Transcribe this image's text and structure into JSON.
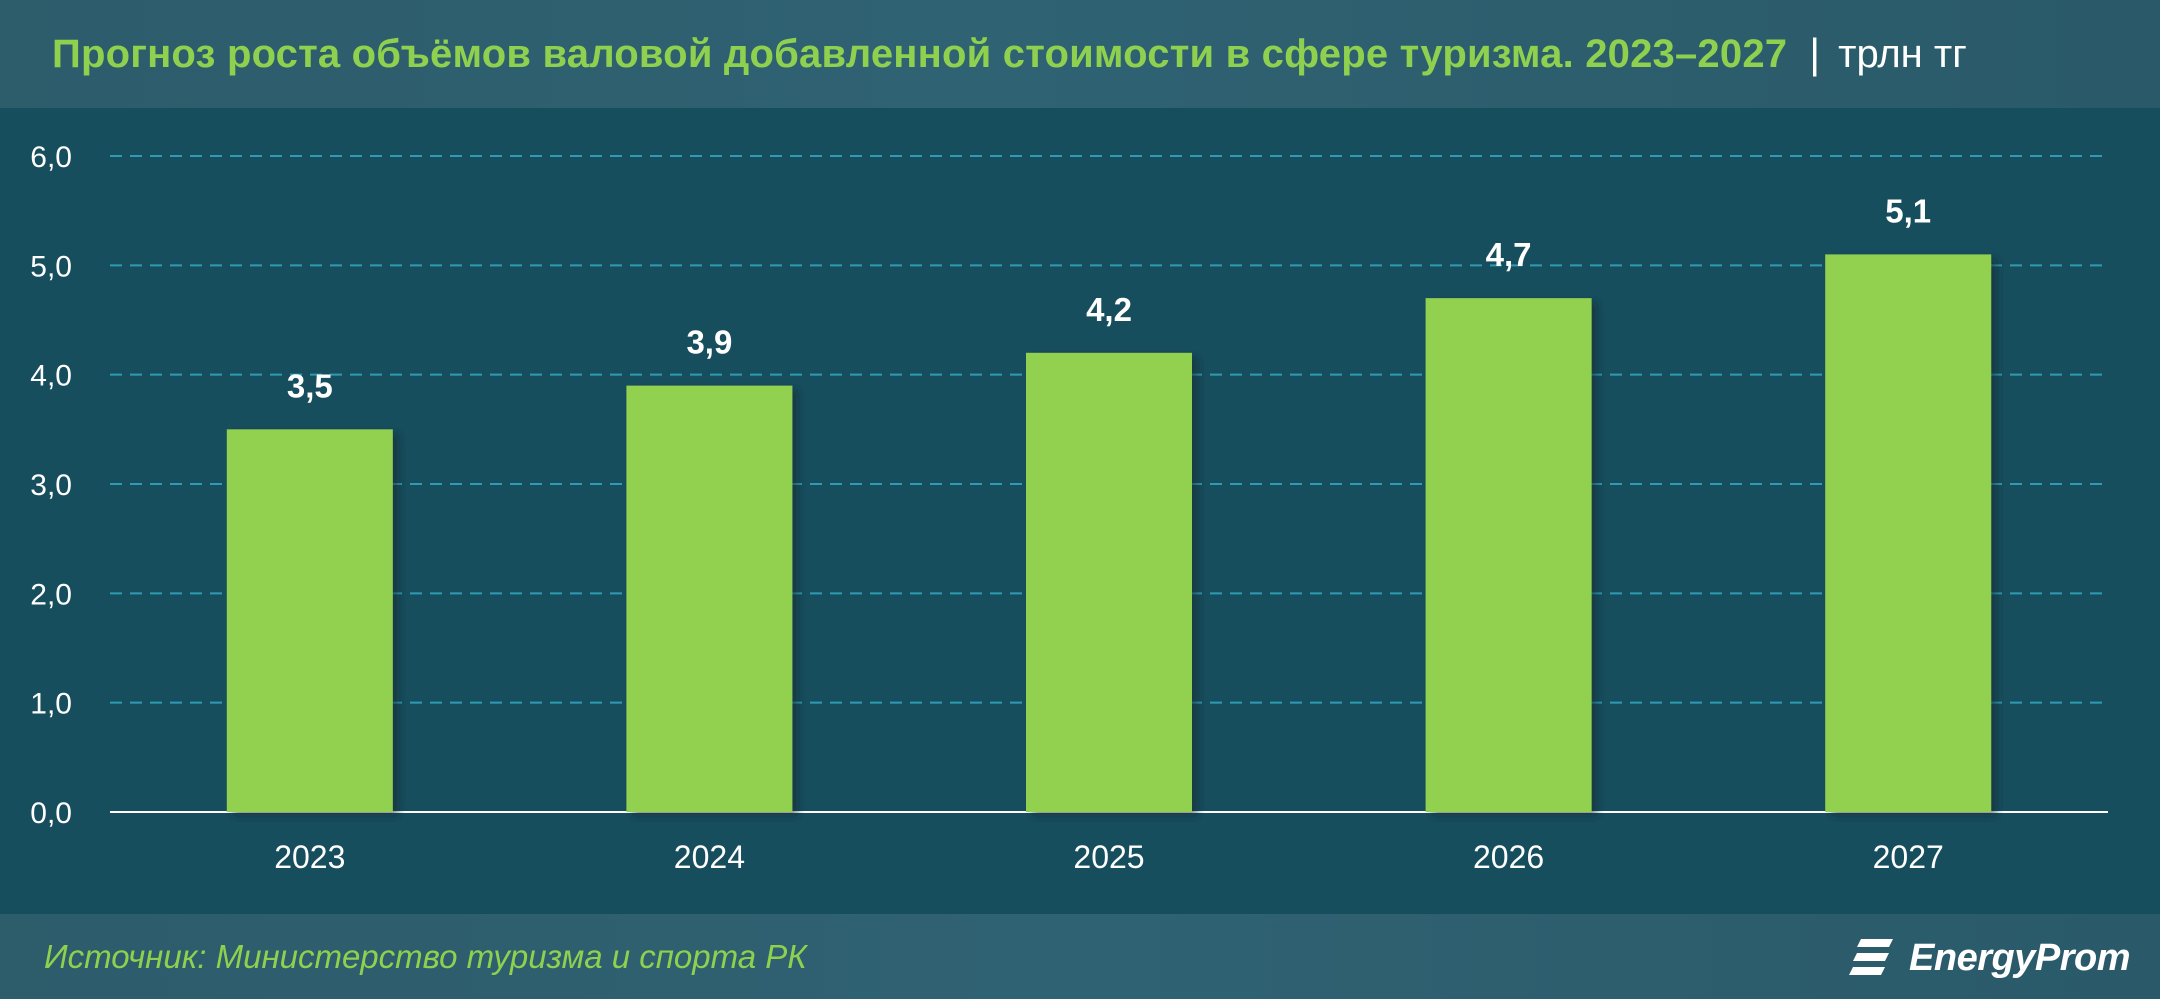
{
  "header": {
    "title": "Прогноз роста объёмов валовой добавленной стоимости в сфере туризма. 2023–2027",
    "separator": "|",
    "unit": "трлн тг"
  },
  "footer": {
    "source": "Источник: Министерство туризма и спорта РК",
    "logo_text": "EnergyProm"
  },
  "colors": {
    "background": "#174e5e",
    "bar": "#92d050",
    "title": "#8fd14f",
    "text": "#ffffff",
    "grid": "#2f9bb3"
  },
  "chart_data": {
    "type": "bar",
    "title": "Прогноз роста объёмов валовой добавленной стоимости в сфере туризма. 2023–2027",
    "categories": [
      "2023",
      "2024",
      "2025",
      "2026",
      "2027"
    ],
    "values": [
      3.5,
      3.9,
      4.2,
      4.7,
      5.1
    ],
    "value_labels": [
      "3,5",
      "3,9",
      "4,2",
      "4,7",
      "5,1"
    ],
    "ylim": [
      0,
      6
    ],
    "yticks": [
      0,
      1,
      2,
      3,
      4,
      5,
      6
    ],
    "ytick_labels": [
      "0,0",
      "1,0",
      "2,0",
      "3,0",
      "4,0",
      "5,0",
      "6,0"
    ],
    "xlabel": "",
    "ylabel": "",
    "unit": "трлн тг",
    "grid": true,
    "legend": "none"
  }
}
